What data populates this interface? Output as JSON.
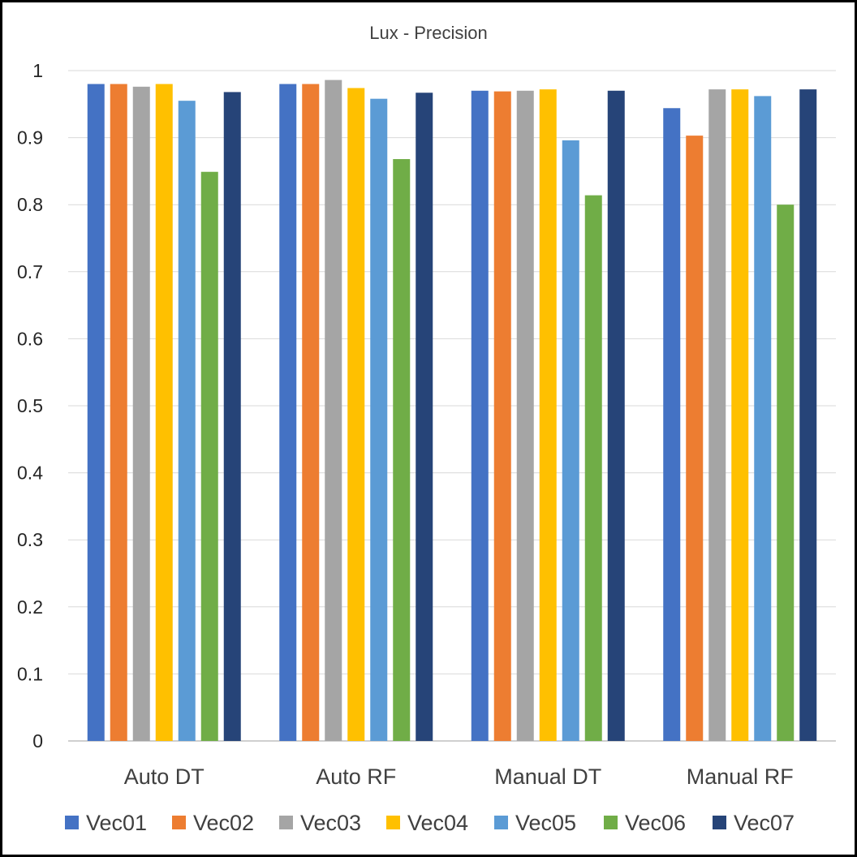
{
  "chart_data": {
    "type": "bar",
    "title": "Lux - Precision",
    "xlabel": "",
    "ylabel": "",
    "categories": [
      "Auto DT",
      "Auto RF",
      "Manual DT",
      "Manual RF"
    ],
    "ylim": [
      0,
      1
    ],
    "yticks": [
      "0",
      "0.1",
      "0.2",
      "0.3",
      "0.4",
      "0.5",
      "0.6",
      "0.7",
      "0.8",
      "0.9",
      "1"
    ],
    "grid": true,
    "legend_position": "bottom",
    "series": [
      {
        "name": "Vec01",
        "color": "#4472C4",
        "values": [
          0.98,
          0.98,
          0.97,
          0.944
        ]
      },
      {
        "name": "Vec02",
        "color": "#ED7D31",
        "values": [
          0.98,
          0.98,
          0.969,
          0.903
        ]
      },
      {
        "name": "Vec03",
        "color": "#A5A5A5",
        "values": [
          0.976,
          0.986,
          0.97,
          0.972
        ]
      },
      {
        "name": "Vec04",
        "color": "#FFC000",
        "values": [
          0.98,
          0.974,
          0.972,
          0.972
        ]
      },
      {
        "name": "Vec05",
        "color": "#5B9BD5",
        "values": [
          0.955,
          0.958,
          0.896,
          0.962
        ]
      },
      {
        "name": "Vec06",
        "color": "#70AD47",
        "values": [
          0.849,
          0.868,
          0.814,
          0.8
        ]
      },
      {
        "name": "Vec07",
        "color": "#264478",
        "values": [
          0.968,
          0.967,
          0.97,
          0.972
        ]
      }
    ]
  }
}
